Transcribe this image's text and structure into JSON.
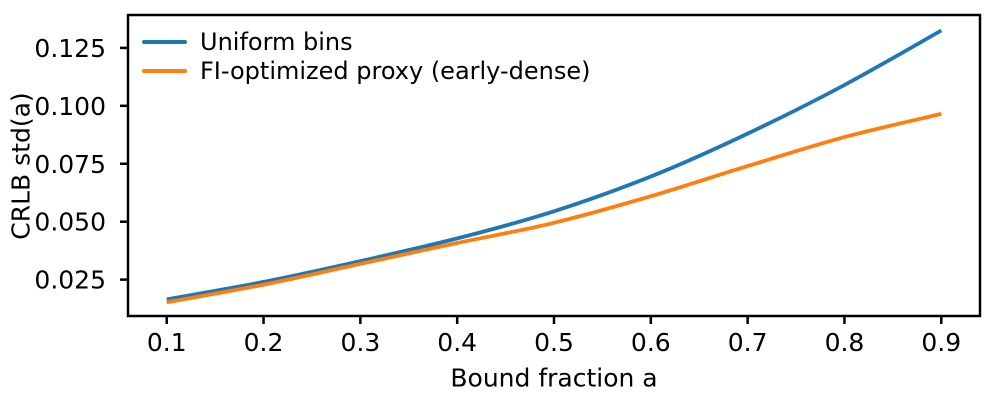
{
  "chart_data": {
    "type": "line",
    "title": "",
    "xlabel": "Bound fraction a",
    "ylabel": "CRLB std(a)",
    "x": [
      0.1,
      0.2,
      0.3,
      0.4,
      0.5,
      0.6,
      0.7,
      0.8,
      0.9
    ],
    "series": [
      {
        "name": "Uniform bins",
        "color": "#1f77b4",
        "values": [
          0.0165,
          0.024,
          0.033,
          0.0428,
          0.0545,
          0.0695,
          0.088,
          0.109,
          0.1325
        ]
      },
      {
        "name": "FI-optimized proxy (early-dense)",
        "color": "#ff7f0e",
        "values": [
          0.0152,
          0.0228,
          0.0318,
          0.0408,
          0.0495,
          0.061,
          0.074,
          0.0865,
          0.0965
        ]
      }
    ],
    "xlim": [
      0.06,
      0.94
    ],
    "ylim": [
      0.0093,
      0.1392
    ],
    "xticks": {
      "values": [
        0.1,
        0.2,
        0.3,
        0.4,
        0.5,
        0.6,
        0.7,
        0.8,
        0.9
      ],
      "labels": [
        "0.1",
        "0.2",
        "0.3",
        "0.4",
        "0.5",
        "0.6",
        "0.7",
        "0.8",
        "0.9"
      ]
    },
    "yticks": {
      "values": [
        0.025,
        0.05,
        0.075,
        0.1,
        0.125
      ],
      "labels": [
        "0.025",
        "0.050",
        "0.075",
        "0.100",
        "0.125"
      ]
    },
    "legend_position": "upper-left",
    "grid": false,
    "axis_color": "#000000",
    "background": "#ffffff",
    "line_width": 3.8
  }
}
